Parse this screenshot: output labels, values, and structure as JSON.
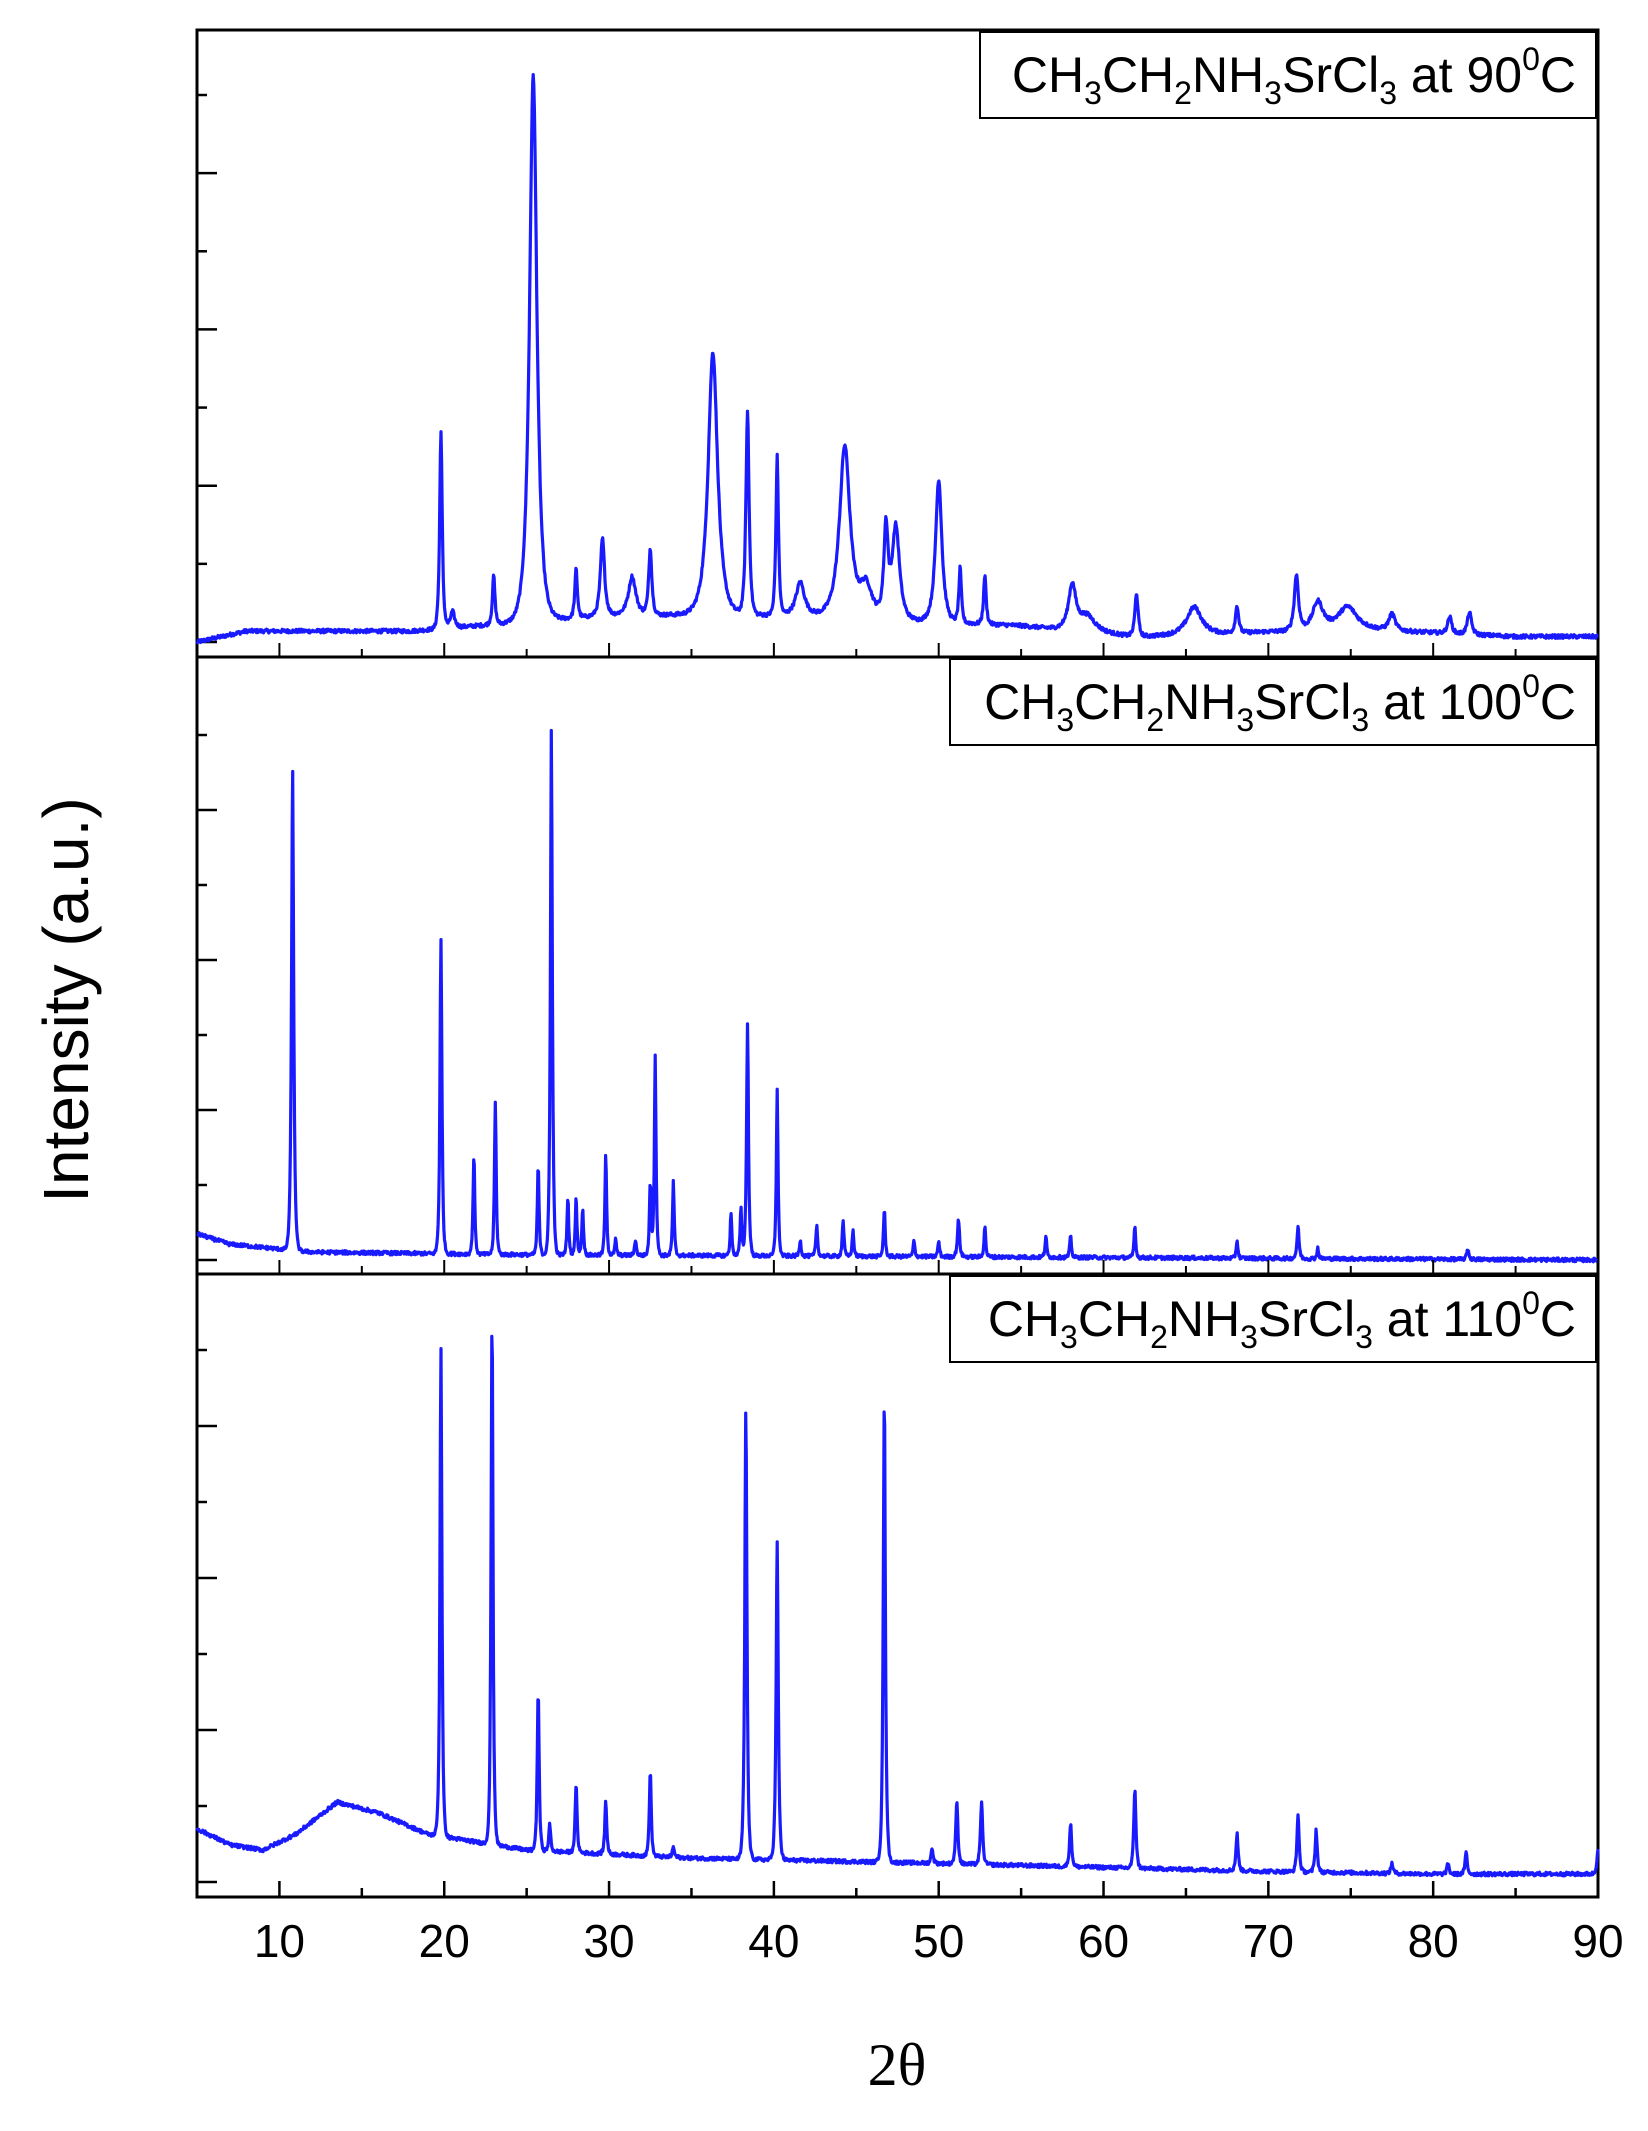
{
  "chart_data": {
    "type": "line",
    "title": "",
    "xlabel": "2θ",
    "ylabel": "Intensity (a.u.)",
    "xlim": [
      5,
      90
    ],
    "ylim": [
      0,
      1.06
    ],
    "x_ticks": [
      10,
      20,
      30,
      40,
      50,
      60,
      70,
      80,
      90
    ],
    "x_tick_labels": [
      "10",
      "20",
      "30",
      "40",
      "50",
      "60",
      "70",
      "80",
      "90"
    ],
    "line_color": "#1a1aff",
    "legend_position": "top-right",
    "panels": [
      {
        "name": "CH3CH2NH3SrCl3 at 90°C",
        "legend": {
          "base": "CH",
          "parts": [
            {
              "t": "CH",
              "s": ""
            },
            {
              "t": "3",
              "s": "sub"
            },
            {
              "t": "CH",
              "s": ""
            },
            {
              "t": "2",
              "s": "sub"
            },
            {
              "t": "NH",
              "s": ""
            },
            {
              "t": "3",
              "s": "sub"
            },
            {
              "t": "SrCl",
              "s": ""
            },
            {
              "t": "3",
              "s": "sub"
            },
            {
              "t": " at 90",
              "s": ""
            },
            {
              "t": "0",
              "s": "sup"
            },
            {
              "t": "C",
              "s": ""
            }
          ]
        },
        "baseline": [
          [
            5,
            0.0
          ],
          [
            8,
            0.02
          ],
          [
            18,
            0.02
          ],
          [
            30,
            0.05
          ],
          [
            42,
            0.05
          ],
          [
            55,
            0.03
          ],
          [
            62,
            0.01
          ],
          [
            75,
            0.025
          ],
          [
            85,
            0.01
          ],
          [
            90,
            0.01
          ]
        ],
        "peaks": [
          [
            19.8,
            0.36,
            0.12
          ],
          [
            20.5,
            0.03,
            0.2
          ],
          [
            23.0,
            0.09,
            0.12
          ],
          [
            25.4,
            1.0,
            0.35
          ],
          [
            28.0,
            0.09,
            0.12
          ],
          [
            29.6,
            0.14,
            0.2
          ],
          [
            31.4,
            0.07,
            0.35
          ],
          [
            32.5,
            0.12,
            0.15
          ],
          [
            36.3,
            0.48,
            0.45
          ],
          [
            38.4,
            0.37,
            0.15
          ],
          [
            40.2,
            0.29,
            0.12
          ],
          [
            41.6,
            0.06,
            0.4
          ],
          [
            44.3,
            0.31,
            0.5
          ],
          [
            45.6,
            0.06,
            0.6
          ],
          [
            46.8,
            0.16,
            0.2
          ],
          [
            47.4,
            0.17,
            0.35
          ],
          [
            50.0,
            0.26,
            0.3
          ],
          [
            51.3,
            0.1,
            0.12
          ],
          [
            52.8,
            0.09,
            0.12
          ],
          [
            58.1,
            0.08,
            0.35
          ],
          [
            59.0,
            0.03,
            0.8
          ],
          [
            62.0,
            0.08,
            0.15
          ],
          [
            65.5,
            0.05,
            0.7
          ],
          [
            68.1,
            0.05,
            0.15
          ],
          [
            71.7,
            0.1,
            0.2
          ],
          [
            73.0,
            0.05,
            0.5
          ],
          [
            74.8,
            0.04,
            0.9
          ],
          [
            77.5,
            0.03,
            0.3
          ],
          [
            81.0,
            0.03,
            0.2
          ],
          [
            82.2,
            0.04,
            0.2
          ]
        ]
      },
      {
        "name": "CH3CH2NH3SrCl3 at 100°C",
        "legend": {
          "parts": [
            {
              "t": "CH",
              "s": ""
            },
            {
              "t": "3",
              "s": "sub"
            },
            {
              "t": "CH",
              "s": ""
            },
            {
              "t": "2",
              "s": "sub"
            },
            {
              "t": "NH",
              "s": ""
            },
            {
              "t": "3",
              "s": "sub"
            },
            {
              "t": "SrCl",
              "s": ""
            },
            {
              "t": "3",
              "s": "sub"
            },
            {
              "t": " at 100",
              "s": ""
            },
            {
              "t": "0",
              "s": "sup"
            },
            {
              "t": "C",
              "s": ""
            }
          ]
        },
        "baseline": [
          [
            5,
            0.05
          ],
          [
            7,
            0.03
          ],
          [
            12,
            0.015
          ],
          [
            25,
            0.01
          ],
          [
            40,
            0.008
          ],
          [
            90,
            0.0
          ]
        ],
        "peaks": [
          [
            10.8,
            0.92,
            0.1
          ],
          [
            19.8,
            0.6,
            0.09
          ],
          [
            21.8,
            0.19,
            0.08
          ],
          [
            23.1,
            0.29,
            0.08
          ],
          [
            25.7,
            0.17,
            0.08
          ],
          [
            26.5,
            1.0,
            0.09
          ],
          [
            27.5,
            0.11,
            0.08
          ],
          [
            28.0,
            0.11,
            0.08
          ],
          [
            28.4,
            0.09,
            0.08
          ],
          [
            29.8,
            0.19,
            0.08
          ],
          [
            30.4,
            0.03,
            0.08
          ],
          [
            31.6,
            0.03,
            0.08
          ],
          [
            32.5,
            0.14,
            0.08
          ],
          [
            32.8,
            0.38,
            0.08
          ],
          [
            33.9,
            0.14,
            0.08
          ],
          [
            37.4,
            0.08,
            0.08
          ],
          [
            38.0,
            0.09,
            0.08
          ],
          [
            38.4,
            0.44,
            0.09
          ],
          [
            40.2,
            0.32,
            0.08
          ],
          [
            41.6,
            0.03,
            0.08
          ],
          [
            42.6,
            0.06,
            0.08
          ],
          [
            44.2,
            0.07,
            0.08
          ],
          [
            44.8,
            0.05,
            0.08
          ],
          [
            46.7,
            0.09,
            0.08
          ],
          [
            48.5,
            0.03,
            0.08
          ],
          [
            50.0,
            0.03,
            0.08
          ],
          [
            51.2,
            0.07,
            0.1
          ],
          [
            52.8,
            0.06,
            0.08
          ],
          [
            56.5,
            0.04,
            0.08
          ],
          [
            58.0,
            0.04,
            0.08
          ],
          [
            61.9,
            0.06,
            0.08
          ],
          [
            68.1,
            0.035,
            0.08
          ],
          [
            71.8,
            0.06,
            0.1
          ],
          [
            73.0,
            0.02,
            0.08
          ],
          [
            82.1,
            0.02,
            0.1
          ]
        ]
      },
      {
        "name": "CH3CH2NH3SrCl3 at 110°C",
        "legend": {
          "parts": [
            {
              "t": "CH",
              "s": ""
            },
            {
              "t": "3",
              "s": "sub"
            },
            {
              "t": "CH",
              "s": ""
            },
            {
              "t": "2",
              "s": "sub"
            },
            {
              "t": "NH",
              "s": ""
            },
            {
              "t": "3",
              "s": "sub"
            },
            {
              "t": "SrCl",
              "s": ""
            },
            {
              "t": "3",
              "s": "sub"
            },
            {
              "t": " at 110",
              "s": ""
            },
            {
              "t": "0",
              "s": "sup"
            },
            {
              "t": "C",
              "s": ""
            }
          ]
        },
        "baseline": [
          [
            5,
            0.1
          ],
          [
            7,
            0.07
          ],
          [
            9,
            0.06
          ],
          [
            11,
            0.09
          ],
          [
            13.5,
            0.15
          ],
          [
            16,
            0.13
          ],
          [
            19,
            0.09
          ],
          [
            25,
            0.06
          ],
          [
            35,
            0.045
          ],
          [
            50,
            0.035
          ],
          [
            70,
            0.02
          ],
          [
            80,
            0.015
          ],
          [
            90,
            0.015
          ]
        ],
        "peaks": [
          [
            19.8,
            0.92,
            0.09
          ],
          [
            22.9,
            1.0,
            0.09
          ],
          [
            25.7,
            0.3,
            0.09
          ],
          [
            26.4,
            0.05,
            0.09
          ],
          [
            28.0,
            0.13,
            0.09
          ],
          [
            29.8,
            0.1,
            0.09
          ],
          [
            32.5,
            0.16,
            0.09
          ],
          [
            33.9,
            0.02,
            0.09
          ],
          [
            38.3,
            0.85,
            0.1
          ],
          [
            40.2,
            0.6,
            0.1
          ],
          [
            46.7,
            0.88,
            0.1
          ],
          [
            49.6,
            0.03,
            0.09
          ],
          [
            51.1,
            0.12,
            0.1
          ],
          [
            52.6,
            0.12,
            0.1
          ],
          [
            58.0,
            0.08,
            0.1
          ],
          [
            61.9,
            0.15,
            0.1
          ],
          [
            68.1,
            0.07,
            0.1
          ],
          [
            71.8,
            0.11,
            0.1
          ],
          [
            72.9,
            0.08,
            0.1
          ],
          [
            77.5,
            0.02,
            0.1
          ],
          [
            80.9,
            0.02,
            0.1
          ],
          [
            82.0,
            0.04,
            0.1
          ],
          [
            90.0,
            0.05,
            0.1
          ]
        ]
      }
    ]
  },
  "labels": {
    "ylabel": "Intensity (a.u.)",
    "xlabel": "2θ"
  }
}
